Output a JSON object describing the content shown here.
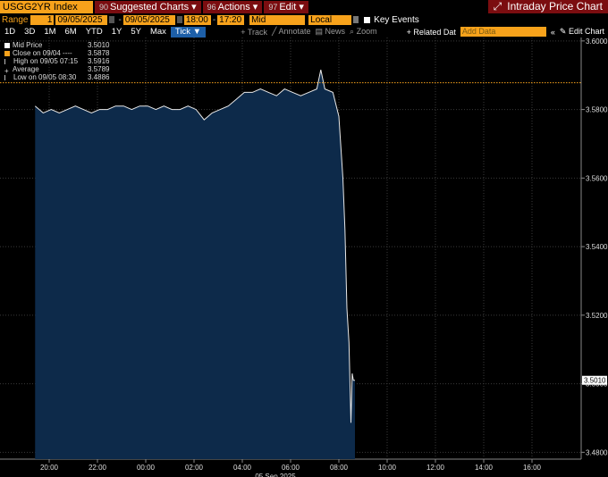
{
  "header": {
    "ticker": "USGG2YR Index",
    "menus": [
      {
        "num": "90",
        "label": "Suggested Charts"
      },
      {
        "num": "96",
        "label": "Actions"
      },
      {
        "num": "97",
        "label": "Edit"
      }
    ],
    "window_title": "Intraday Price Chart",
    "expand_icon": "expand-arrow-icon"
  },
  "controls": {
    "range_label": "Range",
    "range_value": "1",
    "start_date": "09/05/2025",
    "end_date": "09/05/2025",
    "start_time": "18:00",
    "end_time": "17:20",
    "price_type": "Mid",
    "currency": "Local CCY",
    "key_events": "Key Events"
  },
  "periods": [
    "1D",
    "3D",
    "1M",
    "6M",
    "YTD",
    "1Y",
    "5Y",
    "Max"
  ],
  "active_period": "Tick",
  "toolbar": {
    "track": "Track",
    "annotate": "Annotate",
    "news": "News",
    "zoom": "Zoom",
    "related": "+ Related Dat",
    "add_data_placeholder": "Add Data",
    "edit_chart": "Edit Chart"
  },
  "legend": [
    {
      "label": "Mid Price",
      "value": "3.5010",
      "color": "#ffffff"
    },
    {
      "label": "Close on 09/04 ----",
      "value": "3.5878",
      "color": "#f7a21b"
    },
    {
      "label": "High on 09/05 07:15",
      "value": "3.5916",
      "color": "#bbbbbb"
    },
    {
      "label": "Average",
      "value": "3.5789",
      "color": "#bbbbbb"
    },
    {
      "label": "Low on 09/05 08:30",
      "value": "3.4886",
      "color": "#bbbbbb"
    }
  ],
  "chart_data": {
    "type": "area",
    "ylim": [
      3.478,
      3.601
    ],
    "y_ticks": [
      "3.6000",
      "3.5800",
      "3.5600",
      "3.5400",
      "3.5200",
      "3.5000",
      "3.4800"
    ],
    "y_tick_values": [
      3.6,
      3.58,
      3.56,
      3.54,
      3.52,
      3.5,
      3.48
    ],
    "x_ticks": [
      "20:00",
      "22:00",
      "00:00",
      "02:00",
      "04:00",
      "06:00",
      "08:00",
      "10:00",
      "12:00",
      "14:00",
      "16:00"
    ],
    "x_date_label": "05 Sep 2025",
    "previous_close": 3.5878,
    "last_price": "3.5010",
    "x": [
      "19:25",
      "19:45",
      "20:05",
      "20:25",
      "20:45",
      "21:05",
      "21:25",
      "21:45",
      "22:05",
      "22:25",
      "22:45",
      "23:05",
      "23:25",
      "23:45",
      "00:05",
      "00:25",
      "00:45",
      "01:05",
      "01:25",
      "01:45",
      "02:05",
      "02:25",
      "02:45",
      "03:05",
      "03:25",
      "03:45",
      "04:05",
      "04:25",
      "04:45",
      "05:05",
      "05:25",
      "05:45",
      "06:05",
      "06:25",
      "06:45",
      "07:05",
      "07:15",
      "07:25",
      "07:45",
      "08:00",
      "08:10",
      "08:15",
      "08:20",
      "08:25",
      "08:30",
      "08:33",
      "08:36",
      "08:40"
    ],
    "y": [
      3.581,
      3.579,
      3.58,
      3.579,
      3.58,
      3.581,
      3.58,
      3.579,
      3.58,
      3.58,
      3.581,
      3.581,
      3.58,
      3.581,
      3.581,
      3.58,
      3.581,
      3.58,
      3.58,
      3.581,
      3.58,
      3.577,
      3.579,
      3.58,
      3.581,
      3.583,
      3.585,
      3.585,
      3.586,
      3.585,
      3.584,
      3.586,
      3.585,
      3.584,
      3.585,
      3.586,
      3.5916,
      3.586,
      3.585,
      3.578,
      3.56,
      3.545,
      3.522,
      3.512,
      3.4886,
      3.503,
      3.501,
      3.501
    ]
  }
}
